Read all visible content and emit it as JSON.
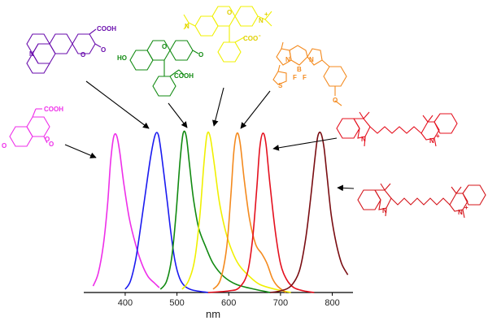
{
  "chart_data": {
    "type": "line",
    "title": "",
    "xlabel": "nm",
    "ylabel": "",
    "xlim": [
      320,
      840
    ],
    "ylim": [
      0,
      1
    ],
    "grid": false,
    "x_ticks": [
      400,
      500,
      600,
      700,
      800
    ],
    "series": [
      {
        "color": "#ee2fe9",
        "peak": 382,
        "points": [
          [
            338,
            0.04
          ],
          [
            348,
            0.12
          ],
          [
            358,
            0.3
          ],
          [
            366,
            0.55
          ],
          [
            372,
            0.82
          ],
          [
            378,
            0.97
          ],
          [
            384,
            0.97
          ],
          [
            390,
            0.86
          ],
          [
            398,
            0.66
          ],
          [
            408,
            0.46
          ],
          [
            420,
            0.3
          ],
          [
            432,
            0.18
          ],
          [
            444,
            0.1
          ],
          [
            456,
            0.06
          ],
          [
            466,
            0.03
          ]
        ]
      },
      {
        "color": "#1a1af0",
        "peak": 460,
        "points": [
          [
            400,
            0.02
          ],
          [
            410,
            0.07
          ],
          [
            420,
            0.2
          ],
          [
            430,
            0.41
          ],
          [
            440,
            0.64
          ],
          [
            450,
            0.86
          ],
          [
            458,
            0.98
          ],
          [
            464,
            0.98
          ],
          [
            470,
            0.86
          ],
          [
            480,
            0.6
          ],
          [
            488,
            0.38
          ],
          [
            496,
            0.2
          ],
          [
            505,
            0.09
          ],
          [
            515,
            0.04
          ],
          [
            530,
            0.015
          ],
          [
            560,
            0
          ]
        ]
      },
      {
        "color": "#118a11",
        "peak": 514,
        "points": [
          [
            468,
            0.02
          ],
          [
            480,
            0.07
          ],
          [
            490,
            0.22
          ],
          [
            498,
            0.48
          ],
          [
            506,
            0.82
          ],
          [
            512,
            0.99
          ],
          [
            518,
            0.97
          ],
          [
            524,
            0.8
          ],
          [
            532,
            0.58
          ],
          [
            542,
            0.4
          ],
          [
            556,
            0.28
          ],
          [
            570,
            0.18
          ],
          [
            590,
            0.1
          ],
          [
            615,
            0.05
          ],
          [
            650,
            0.02
          ],
          [
            680,
            0
          ]
        ]
      },
      {
        "color": "#f0f000",
        "peak": 560,
        "points": [
          [
            510,
            0.02
          ],
          [
            522,
            0.07
          ],
          [
            534,
            0.2
          ],
          [
            544,
            0.47
          ],
          [
            552,
            0.8
          ],
          [
            558,
            0.98
          ],
          [
            564,
            0.97
          ],
          [
            572,
            0.8
          ],
          [
            582,
            0.56
          ],
          [
            594,
            0.38
          ],
          [
            606,
            0.26
          ],
          [
            620,
            0.17
          ],
          [
            640,
            0.1
          ],
          [
            660,
            0.05
          ],
          [
            690,
            0.02
          ],
          [
            720,
            0
          ]
        ]
      },
      {
        "color": "#f48a1e",
        "peak": 616,
        "points": [
          [
            570,
            0.02
          ],
          [
            584,
            0.08
          ],
          [
            596,
            0.28
          ],
          [
            604,
            0.6
          ],
          [
            610,
            0.88
          ],
          [
            616,
            0.99
          ],
          [
            622,
            0.93
          ],
          [
            630,
            0.7
          ],
          [
            640,
            0.46
          ],
          [
            652,
            0.3
          ],
          [
            664,
            0.24
          ],
          [
            674,
            0.18
          ],
          [
            684,
            0.09
          ],
          [
            694,
            0.04
          ],
          [
            710,
            0
          ]
        ]
      },
      {
        "color": "#e4101e",
        "peak": 664,
        "points": [
          [
            560,
            0
          ],
          [
            600,
            0.01
          ],
          [
            620,
            0.03
          ],
          [
            636,
            0.12
          ],
          [
            646,
            0.33
          ],
          [
            654,
            0.64
          ],
          [
            660,
            0.9
          ],
          [
            666,
            0.99
          ],
          [
            672,
            0.92
          ],
          [
            680,
            0.66
          ],
          [
            690,
            0.38
          ],
          [
            700,
            0.18
          ],
          [
            712,
            0.08
          ],
          [
            726,
            0.03
          ],
          [
            745,
            0.01
          ],
          [
            765,
            0
          ]
        ]
      },
      {
        "color": "#7a0d12",
        "peak": 775,
        "points": [
          [
            680,
            0
          ],
          [
            700,
            0.01
          ],
          [
            720,
            0.04
          ],
          [
            736,
            0.13
          ],
          [
            748,
            0.32
          ],
          [
            758,
            0.58
          ],
          [
            766,
            0.82
          ],
          [
            772,
            0.97
          ],
          [
            778,
            0.99
          ],
          [
            784,
            0.9
          ],
          [
            790,
            0.72
          ],
          [
            798,
            0.48
          ],
          [
            808,
            0.3
          ],
          [
            818,
            0.18
          ],
          [
            830,
            0.11
          ]
        ]
      }
    ]
  },
  "colors": {
    "coumarin": "#ee2fe9",
    "coumarin343": "#6a0dad",
    "fluorescein": "#118a11",
    "rhodamine": "#f0f000",
    "bodipy": "#f48a1e",
    "cy5": "#e4101e",
    "cy7": "#d4141a",
    "axis": "#000000",
    "arrow": "#000000"
  },
  "labels": {
    "coumarin_acid": "COOH",
    "coumarin_o": "O",
    "coumarin_ominus": "O",
    "c343_acid": "COOH",
    "c343_n": "N",
    "c343_o1": "O",
    "c343_o2": "O",
    "fluor_ho": "HO",
    "fluor_o1": "O",
    "fluor_o2": "O",
    "fluor_acid": "COOH",
    "rhod_n1": "N",
    "rhod_n2": "N",
    "rhod_plus": "+",
    "rhod_o": "O",
    "rhod_coo": "COO",
    "rhod_minus": "-",
    "bod_n1": "N",
    "bod_n2": "N",
    "bod_b": "B",
    "bod_f1": "F",
    "bod_f2": "F",
    "bod_s": "S",
    "bod_o": "O",
    "cy5_n1": "N",
    "cy5_n2": "N",
    "cy5_plus": "+",
    "cy7_n1": "N",
    "cy7_n2": "N",
    "cy7_plus": "+"
  },
  "icons": {
    "structures": [
      "coumarin-structure",
      "coumarin-343-structure",
      "fluorescein-structure",
      "rhodamine-structure",
      "bodipy-structure",
      "cy5-structure",
      "cy7-structure"
    ]
  }
}
